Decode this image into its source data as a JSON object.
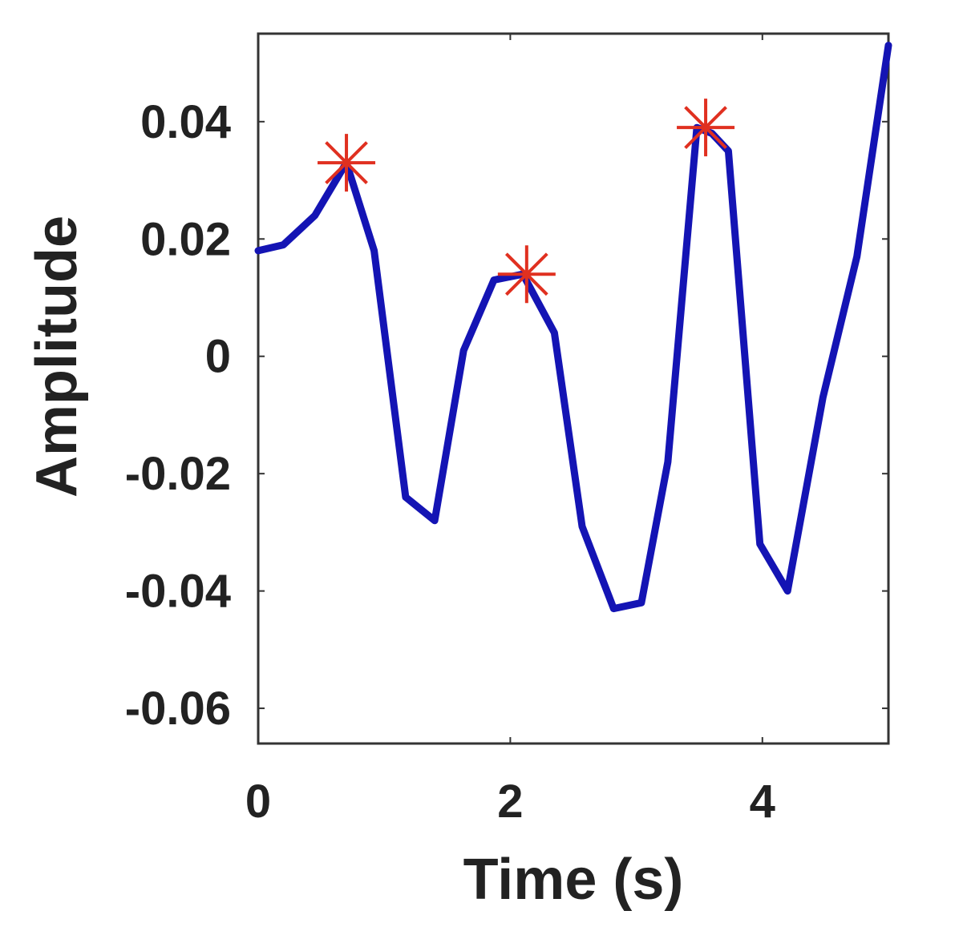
{
  "chart_data": {
    "type": "line",
    "title": "",
    "xlabel": "Time (s)",
    "ylabel": "Amplitude",
    "xlim": [
      0,
      5
    ],
    "ylim": [
      -0.066,
      0.055
    ],
    "xticks": [
      {
        "value": 0,
        "label": "0"
      },
      {
        "value": 2,
        "label": "2"
      },
      {
        "value": 4,
        "label": "4"
      }
    ],
    "yticks": [
      {
        "value": 0.04,
        "label": "0.04"
      },
      {
        "value": 0.02,
        "label": "0.02"
      },
      {
        "value": 0,
        "label": "0"
      },
      {
        "value": -0.02,
        "label": "-0.02"
      },
      {
        "value": -0.04,
        "label": "-0.04"
      },
      {
        "value": -0.06,
        "label": "-0.06"
      }
    ],
    "grid": false,
    "series": [
      {
        "color": "#1414b4",
        "x": [
          0,
          0.2,
          0.45,
          0.7,
          0.92,
          1.17,
          1.4,
          1.63,
          1.87,
          2.1,
          2.35,
          2.57,
          2.82,
          3.04,
          3.25,
          3.48,
          3.6,
          3.73,
          3.98,
          4.2,
          4.48,
          4.75,
          5.0
        ],
        "y": [
          0.018,
          0.019,
          0.024,
          0.033,
          0.018,
          -0.024,
          -0.028,
          0.001,
          0.013,
          0.014,
          0.004,
          -0.029,
          -0.043,
          -0.042,
          -0.018,
          0.039,
          0.038,
          0.035,
          -0.032,
          -0.04,
          -0.007,
          0.017,
          0.053
        ]
      }
    ],
    "markers": [
      {
        "x": 0.7,
        "y": 0.033,
        "color": "#e03020"
      },
      {
        "x": 2.13,
        "y": 0.014,
        "color": "#e03020"
      },
      {
        "x": 3.55,
        "y": 0.039,
        "color": "#e03020"
      }
    ]
  }
}
